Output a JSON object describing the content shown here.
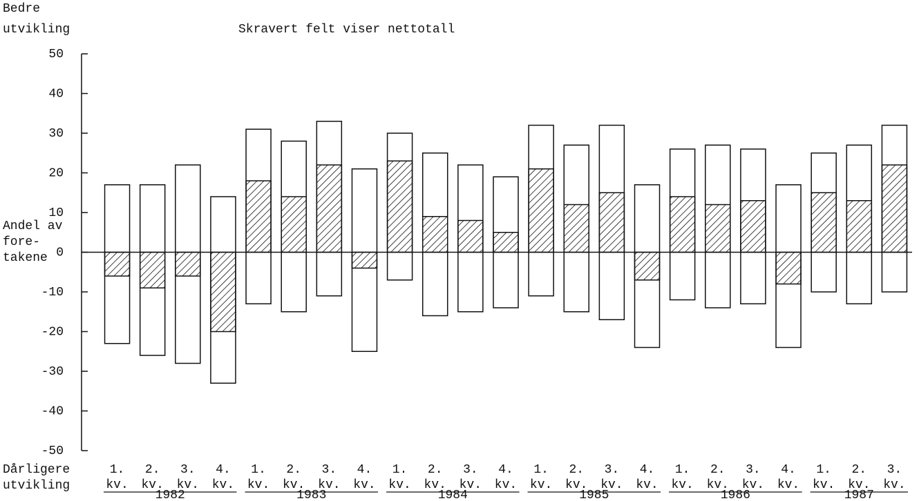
{
  "chart_data": {
    "type": "range-net-bar",
    "subtitle": "Skravert felt viser nettotall",
    "top_label": [
      "Bedre",
      "utvikling"
    ],
    "zero_label": [
      "Andel av",
      "fore-",
      "takene"
    ],
    "bottom_label": [
      "Dårligere",
      "utvikling"
    ],
    "categories": [
      {
        "quarter": "1.",
        "unit": "kv.",
        "year": "1982"
      },
      {
        "quarter": "2.",
        "unit": "kv.",
        "year": "1982"
      },
      {
        "quarter": "3.",
        "unit": "kv.",
        "year": "1982"
      },
      {
        "quarter": "4.",
        "unit": "kv.",
        "year": "1982"
      },
      {
        "quarter": "1.",
        "unit": "kv.",
        "year": "1983"
      },
      {
        "quarter": "2.",
        "unit": "kv.",
        "year": "1983"
      },
      {
        "quarter": "3.",
        "unit": "kv.",
        "year": "1983"
      },
      {
        "quarter": "4.",
        "unit": "kv.",
        "year": "1983"
      },
      {
        "quarter": "1.",
        "unit": "kv.",
        "year": "1984"
      },
      {
        "quarter": "2.",
        "unit": "kv.",
        "year": "1984"
      },
      {
        "quarter": "3.",
        "unit": "kv.",
        "year": "1984"
      },
      {
        "quarter": "4.",
        "unit": "kv.",
        "year": "1984"
      },
      {
        "quarter": "1.",
        "unit": "kv.",
        "year": "1985"
      },
      {
        "quarter": "2.",
        "unit": "kv.",
        "year": "1985"
      },
      {
        "quarter": "3.",
        "unit": "kv.",
        "year": "1985"
      },
      {
        "quarter": "4.",
        "unit": "kv.",
        "year": "1985"
      },
      {
        "quarter": "1.",
        "unit": "kv.",
        "year": "1986"
      },
      {
        "quarter": "2.",
        "unit": "kv.",
        "year": "1986"
      },
      {
        "quarter": "3.",
        "unit": "kv.",
        "year": "1986"
      },
      {
        "quarter": "4.",
        "unit": "kv.",
        "year": "1986"
      },
      {
        "quarter": "1.",
        "unit": "kv.",
        "year": "1987"
      },
      {
        "quarter": "2.",
        "unit": "kv.",
        "year": "1987"
      },
      {
        "quarter": "3.",
        "unit": "kv.",
        "year": "1987"
      }
    ],
    "better": [
      17,
      17,
      22,
      14,
      31,
      28,
      33,
      21,
      30,
      25,
      22,
      19,
      32,
      27,
      32,
      17,
      26,
      27,
      26,
      17,
      25,
      27,
      32
    ],
    "worse": [
      -23,
      -26,
      -28,
      -33,
      -13,
      -15,
      -11,
      -25,
      -7,
      -16,
      -15,
      -14,
      -11,
      -15,
      -17,
      -24,
      -12,
      -14,
      -13,
      -24,
      -10,
      -13,
      -10
    ],
    "net": [
      -6,
      -9,
      -6,
      -20,
      18,
      14,
      22,
      -4,
      23,
      9,
      8,
      5,
      21,
      12,
      15,
      -7,
      14,
      12,
      13,
      -8,
      15,
      13,
      22
    ],
    "ylim": [
      -50,
      50
    ],
    "yticks": [
      -50,
      -40,
      -30,
      -20,
      -10,
      0,
      10,
      20,
      30,
      40,
      50
    ],
    "box_color": "#ffffff",
    "hatch_color": "#111111"
  }
}
